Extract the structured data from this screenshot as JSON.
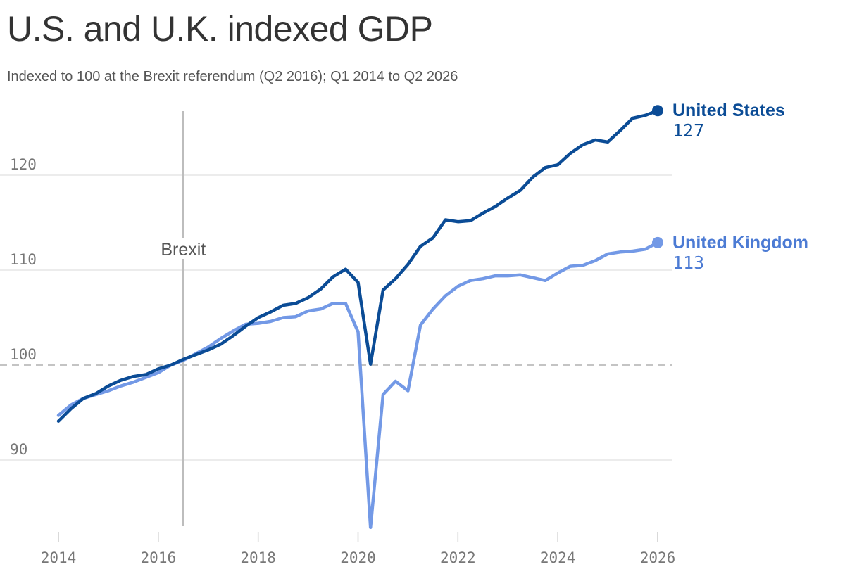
{
  "header": {
    "title": "U.S. and U.K. indexed GDP",
    "subtitle": "Indexed to 100 at the Brexit referendum (Q2 2016); Q1 2014 to Q2 2026"
  },
  "colors": {
    "us": "#0b4c96",
    "uk": "#7399e6",
    "uk_label": "#4c7bd4",
    "grid": "#e6e6e6",
    "baseline": "#c4c4c4",
    "brexit_line": "#bdbdbd"
  },
  "chart_data": {
    "type": "line",
    "title": "U.S. and U.K. indexed GDP",
    "subtitle": "Indexed to 100 at the Brexit referendum (Q2 2016); Q1 2014 to Q2 2026",
    "xlabel": "",
    "ylabel": "",
    "xlim": [
      2014,
      2026
    ],
    "ylim": [
      83,
      127.5
    ],
    "x_ticks": [
      2014,
      2016,
      2018,
      2020,
      2022,
      2024,
      2026
    ],
    "y_ticks": [
      90,
      100,
      110,
      120
    ],
    "grid": true,
    "baseline": 100,
    "annotations": [
      {
        "label": "Brexit",
        "x": 2016.5
      }
    ],
    "x": [
      2014.0,
      2014.25,
      2014.5,
      2014.75,
      2015.0,
      2015.25,
      2015.5,
      2015.75,
      2016.0,
      2016.25,
      2016.5,
      2016.75,
      2017.0,
      2017.25,
      2017.5,
      2017.75,
      2018.0,
      2018.25,
      2018.5,
      2018.75,
      2019.0,
      2019.25,
      2019.5,
      2019.75,
      2020.0,
      2020.25,
      2020.5,
      2020.75,
      2021.0,
      2021.25,
      2021.5,
      2021.75,
      2022.0,
      2022.25,
      2022.5,
      2022.75,
      2023.0,
      2023.25,
      2023.5,
      2023.75,
      2024.0,
      2024.25,
      2024.5,
      2024.75,
      2025.0,
      2025.25,
      2025.5,
      2025.75,
      2026.0
    ],
    "series": [
      {
        "name": "United States",
        "end_value": "127",
        "values": [
          94.1,
          95.4,
          96.5,
          97.0,
          97.8,
          98.4,
          98.8,
          99.0,
          99.6,
          100.0,
          100.6,
          101.1,
          101.6,
          102.2,
          103.1,
          104.1,
          105.0,
          105.6,
          106.3,
          106.5,
          107.1,
          108.0,
          109.3,
          110.1,
          108.7,
          100.1,
          107.9,
          109.1,
          110.6,
          112.5,
          113.4,
          115.3,
          115.1,
          115.2,
          116.0,
          116.7,
          117.6,
          118.4,
          119.8,
          120.8,
          121.1,
          122.3,
          123.2,
          123.7,
          123.5,
          124.7,
          126.0,
          126.3,
          126.8
        ]
      },
      {
        "name": "United Kingdom",
        "end_value": "113",
        "values": [
          94.7,
          95.8,
          96.5,
          96.9,
          97.3,
          97.8,
          98.2,
          98.7,
          99.2,
          100.0,
          100.5,
          101.2,
          101.9,
          102.8,
          103.6,
          104.3,
          104.4,
          104.6,
          105.0,
          105.1,
          105.7,
          105.9,
          106.5,
          106.5,
          103.5,
          82.9,
          96.9,
          98.3,
          97.3,
          104.2,
          105.9,
          107.3,
          108.3,
          108.9,
          109.1,
          109.4,
          109.4,
          109.5,
          109.2,
          108.9,
          109.7,
          110.4,
          110.5,
          111.0,
          111.7,
          111.9,
          112.0,
          112.2,
          112.9
        ]
      }
    ]
  }
}
